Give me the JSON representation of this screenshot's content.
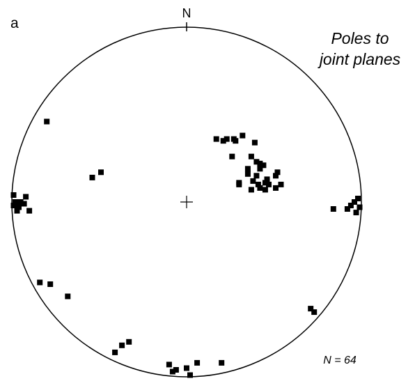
{
  "panel_label": "a",
  "north_label": "N",
  "title_line1": "Poles to",
  "title_line2": "joint planes",
  "count_label": "N = 64",
  "colors": {
    "ink": "#000000",
    "background": "#ffffff"
  },
  "poles": [
    [
      0.37,
      0.07
    ],
    [
      0.45,
      0.07
    ],
    [
      0.42,
      0.08
    ],
    [
      0.51,
      0.08
    ],
    [
      0.3,
      0.1
    ],
    [
      0.41,
      0.1
    ],
    [
      0.47,
      0.1
    ],
    [
      0.54,
      0.1
    ],
    [
      0.45,
      0.11
    ],
    [
      0.3,
      0.11
    ],
    [
      0.38,
      0.12
    ],
    [
      0.46,
      0.13
    ],
    [
      0.51,
      0.15
    ],
    [
      0.4,
      0.15
    ],
    [
      0.35,
      0.16
    ],
    [
      0.52,
      0.17
    ],
    [
      0.42,
      0.19
    ],
    [
      0.35,
      0.19
    ],
    [
      0.44,
      0.21
    ],
    [
      0.42,
      0.22
    ],
    [
      0.4,
      0.23
    ],
    [
      0.26,
      0.26
    ],
    [
      0.37,
      0.26
    ],
    [
      0.39,
      0.34
    ],
    [
      0.17,
      0.36
    ],
    [
      0.32,
      0.38
    ],
    [
      0.28,
      0.35
    ],
    [
      0.21,
      0.35
    ],
    [
      0.23,
      0.36
    ],
    [
      0.27,
      0.36
    ],
    [
      -0.49,
      0.17
    ],
    [
      -0.54,
      0.14
    ],
    [
      -0.8,
      0.46
    ],
    [
      -0.99,
      0.04
    ],
    [
      -0.92,
      0.03
    ],
    [
      -0.98,
      0.0
    ],
    [
      -0.95,
      0.0
    ],
    [
      -0.93,
      -0.01
    ],
    [
      -0.99,
      -0.02
    ],
    [
      -0.96,
      -0.03
    ],
    [
      -0.9,
      -0.05
    ],
    [
      -0.97,
      -0.05
    ],
    [
      0.98,
      0.02
    ],
    [
      0.96,
      0.0
    ],
    [
      0.94,
      -0.02
    ],
    [
      0.99,
      -0.03
    ],
    [
      0.92,
      -0.04
    ],
    [
      0.97,
      -0.06
    ],
    [
      0.84,
      -0.04
    ],
    [
      -0.68,
      -0.54
    ],
    [
      -0.78,
      -0.47
    ],
    [
      -0.84,
      -0.46
    ],
    [
      0.71,
      -0.61
    ],
    [
      0.73,
      -0.63
    ],
    [
      -0.37,
      -0.82
    ],
    [
      -0.41,
      -0.86
    ],
    [
      -0.33,
      -0.8
    ],
    [
      0.06,
      -0.92
    ],
    [
      -0.1,
      -0.93
    ],
    [
      0.2,
      -0.92
    ],
    [
      0.0,
      -0.95
    ],
    [
      -0.08,
      -0.97
    ],
    [
      0.02,
      -0.99
    ],
    [
      -0.06,
      -0.96
    ]
  ]
}
